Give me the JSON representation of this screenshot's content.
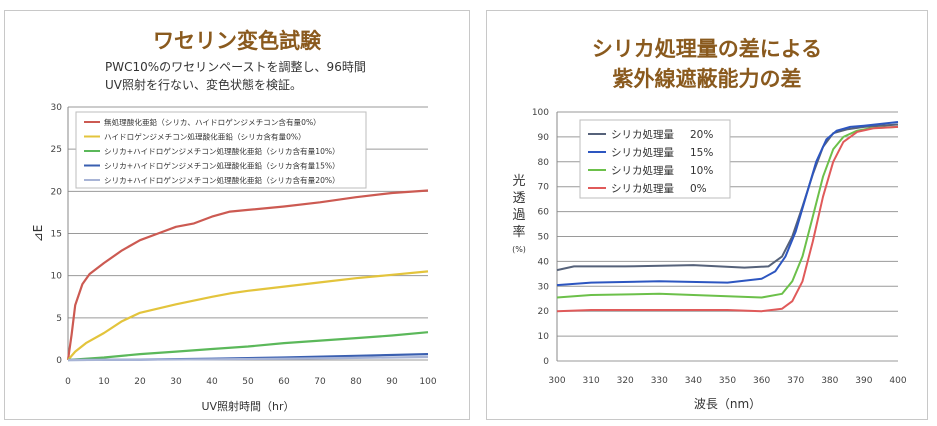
{
  "chart_data": [
    {
      "type": "line",
      "title": "ワセリン変色試験",
      "subtitle": [
        "PWC10%のワセリンペーストを調整し、96時間",
        "UV照射を行ない、変色状態を検証。"
      ],
      "xlabel": "UV照射時間（hr）",
      "ylabel": "⊿E",
      "xlim": [
        0,
        100
      ],
      "ylim": [
        0,
        30
      ],
      "xticks": [
        0,
        10,
        20,
        30,
        40,
        50,
        60,
        70,
        80,
        90,
        100
      ],
      "yticks": [
        0,
        5,
        10,
        15,
        20,
        25,
        30
      ],
      "grid": true,
      "legend_position": "top-left",
      "series": [
        {
          "name": "無処理酸化亜鉛（シリカ、ハイドロゲンジメチコン含有量0%）",
          "color": "#cc5a52",
          "points": [
            [
              0,
              0
            ],
            [
              1,
              3
            ],
            [
              2,
              6.5
            ],
            [
              4,
              9
            ],
            [
              6,
              10.2
            ],
            [
              10,
              11.5
            ],
            [
              15,
              13
            ],
            [
              20,
              14.2
            ],
            [
              25,
              15
            ],
            [
              30,
              15.8
            ],
            [
              35,
              16.2
            ],
            [
              40,
              17
            ],
            [
              45,
              17.6
            ],
            [
              50,
              17.8
            ],
            [
              60,
              18.2
            ],
            [
              70,
              18.7
            ],
            [
              80,
              19.3
            ],
            [
              90,
              19.8
            ],
            [
              100,
              20.1
            ]
          ]
        },
        {
          "name": "ハイドロゲンジメチコン処理酸化亜鉛（シリカ含有量0%）",
          "color": "#e3c43c",
          "points": [
            [
              0,
              0
            ],
            [
              2,
              1
            ],
            [
              5,
              2
            ],
            [
              10,
              3.2
            ],
            [
              15,
              4.6
            ],
            [
              20,
              5.6
            ],
            [
              30,
              6.6
            ],
            [
              40,
              7.5
            ],
            [
              45,
              7.9
            ],
            [
              50,
              8.2
            ],
            [
              60,
              8.7
            ],
            [
              70,
              9.2
            ],
            [
              80,
              9.7
            ],
            [
              90,
              10.1
            ],
            [
              100,
              10.5
            ]
          ]
        },
        {
          "name": "シリカ+ハイドロゲンジメチコン処理酸化亜鉛（シリカ含有量10%）",
          "color": "#5bb85a",
          "points": [
            [
              0,
              0
            ],
            [
              10,
              0.3
            ],
            [
              20,
              0.7
            ],
            [
              30,
              1.0
            ],
            [
              40,
              1.3
            ],
            [
              50,
              1.6
            ],
            [
              60,
              2.0
            ],
            [
              70,
              2.3
            ],
            [
              80,
              2.6
            ],
            [
              90,
              2.9
            ],
            [
              100,
              3.3
            ]
          ]
        },
        {
          "name": "シリカ+ハイドロゲンジメチコン処理酸化亜鉛（シリカ含有量15%）",
          "color": "#3a5fb0",
          "points": [
            [
              0,
              0
            ],
            [
              20,
              0.05
            ],
            [
              40,
              0.15
            ],
            [
              60,
              0.3
            ],
            [
              80,
              0.5
            ],
            [
              100,
              0.7
            ]
          ]
        },
        {
          "name": "シリカ+ハイドロゲンジメチコン処理酸化亜鉛（シリカ含有量20%）",
          "color": "#a8b4d6",
          "points": [
            [
              0,
              0
            ],
            [
              20,
              0.03
            ],
            [
              40,
              0.08
            ],
            [
              60,
              0.15
            ],
            [
              80,
              0.25
            ],
            [
              100,
              0.35
            ]
          ]
        }
      ]
    },
    {
      "type": "line",
      "title": [
        "シリカ処理量の差による",
        "紫外線遮蔽能力の差"
      ],
      "xlabel": "波長（nm）",
      "ylabel": [
        "光",
        "透",
        "過",
        "率",
        "(%)"
      ],
      "xlim": [
        300,
        400
      ],
      "ylim": [
        0,
        100
      ],
      "xticks": [
        300,
        310,
        320,
        330,
        340,
        350,
        360,
        370,
        380,
        390,
        400
      ],
      "yticks": [
        0,
        10,
        20,
        30,
        40,
        50,
        60,
        70,
        80,
        90,
        100
      ],
      "grid": true,
      "legend_position": "top-left",
      "series": [
        {
          "name": "シリカ処理量",
          "amount": "20%",
          "color": "#56627a",
          "points": [
            [
              300,
              36.5
            ],
            [
              305,
              38
            ],
            [
              320,
              38
            ],
            [
              340,
              38.5
            ],
            [
              355,
              37.5
            ],
            [
              362,
              38
            ],
            [
              366,
              42
            ],
            [
              369,
              50
            ],
            [
              372,
              62
            ],
            [
              375,
              75
            ],
            [
              378,
              86
            ],
            [
              381,
              91.5
            ],
            [
              385,
              93
            ],
            [
              390,
              94
            ],
            [
              400,
              95
            ]
          ]
        },
        {
          "name": "シリカ処理量",
          "amount": "15%",
          "color": "#2d56c0",
          "points": [
            [
              300,
              30.5
            ],
            [
              310,
              31.5
            ],
            [
              330,
              32
            ],
            [
              350,
              31.5
            ],
            [
              360,
              33
            ],
            [
              364,
              36
            ],
            [
              367,
              42
            ],
            [
              370,
              52
            ],
            [
              373,
              66
            ],
            [
              376,
              80
            ],
            [
              379,
              89
            ],
            [
              382,
              92.5
            ],
            [
              386,
              94
            ],
            [
              390,
              94.5
            ],
            [
              400,
              96
            ]
          ]
        },
        {
          "name": "シリカ処理量",
          "amount": "10%",
          "color": "#6cc04a",
          "points": [
            [
              300,
              25.5
            ],
            [
              310,
              26.5
            ],
            [
              330,
              27
            ],
            [
              350,
              26
            ],
            [
              360,
              25.5
            ],
            [
              366,
              27
            ],
            [
              369,
              32
            ],
            [
              372,
              42
            ],
            [
              375,
              58
            ],
            [
              378,
              74
            ],
            [
              381,
              85
            ],
            [
              384,
              90
            ],
            [
              388,
              92.5
            ],
            [
              392,
              93.5
            ],
            [
              400,
              94
            ]
          ]
        },
        {
          "name": "シリカ処理量",
          "amount": "0%",
          "color": "#e05a5a",
          "points": [
            [
              300,
              20
            ],
            [
              310,
              20.5
            ],
            [
              330,
              20.5
            ],
            [
              350,
              20.5
            ],
            [
              360,
              20
            ],
            [
              366,
              21
            ],
            [
              369,
              24
            ],
            [
              372,
              32
            ],
            [
              375,
              48
            ],
            [
              378,
              66
            ],
            [
              381,
              80
            ],
            [
              384,
              88
            ],
            [
              388,
              92
            ],
            [
              393,
              93.5
            ],
            [
              400,
              94
            ]
          ]
        }
      ]
    }
  ]
}
